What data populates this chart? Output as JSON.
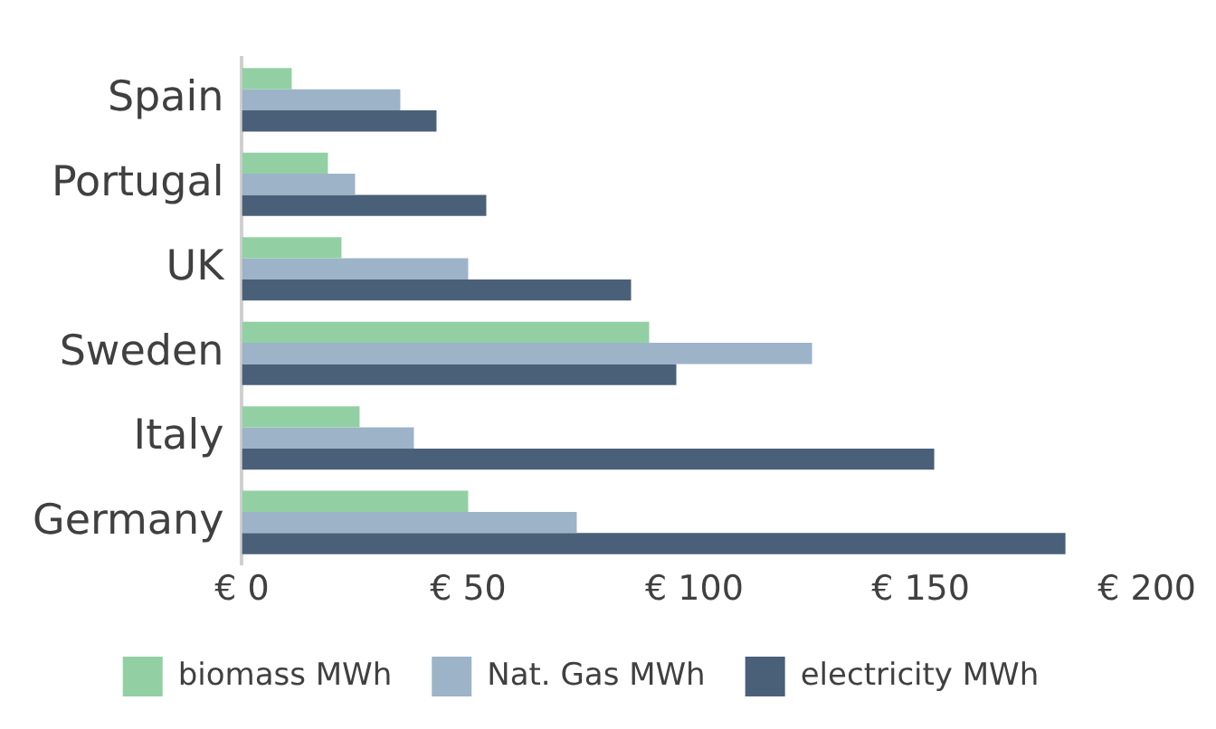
{
  "chart_data": {
    "type": "bar",
    "orientation": "horizontal",
    "categories": [
      "Spain",
      "Portugal",
      "UK",
      "Sweden",
      "Italy",
      "Germany"
    ],
    "series": [
      {
        "name": "biomass MWh",
        "color": "#92d0a4",
        "values": [
          11,
          19,
          22,
          90,
          26,
          50
        ]
      },
      {
        "name": "Nat. Gas MWh",
        "color": "#9cb3c8",
        "values": [
          35,
          25,
          50,
          126,
          38,
          74
        ]
      },
      {
        "name": "electricity MWh",
        "color": "#4a6078",
        "values": [
          43,
          54,
          86,
          96,
          153,
          182
        ]
      }
    ],
    "xlim": [
      0,
      200
    ],
    "xticks": [
      {
        "value": 0,
        "label": "€ 0"
      },
      {
        "value": 50,
        "label": "€ 50"
      },
      {
        "value": 100,
        "label": "€ 100"
      },
      {
        "value": 150,
        "label": "€ 150"
      },
      {
        "value": 200,
        "label": "€ 200"
      }
    ],
    "grid": false,
    "legend": "bottom"
  }
}
